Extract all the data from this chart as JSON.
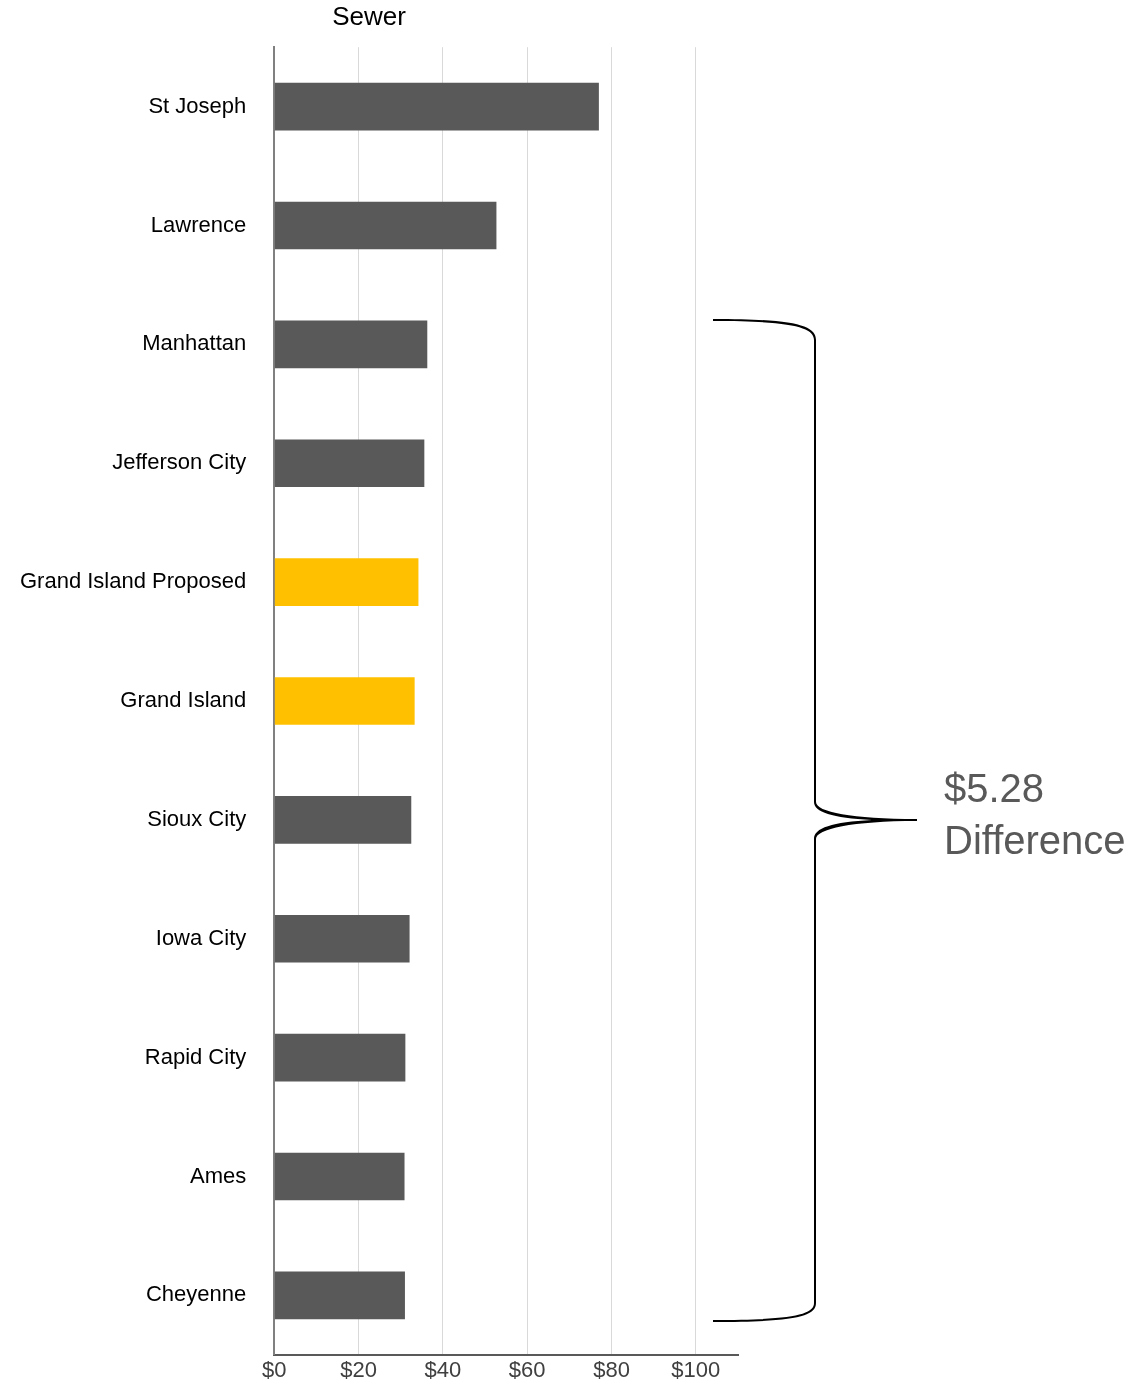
{
  "chart_data": {
    "type": "bar",
    "orientation": "horizontal",
    "title": "Sewer",
    "categories": [
      "St Joseph",
      "Lawrence",
      "Manhattan",
      "Jefferson City",
      "Grand Island Proposed",
      "Grand Island",
      "Sioux City",
      "Iowa City",
      "Rapid City",
      "Ames",
      "Cheyenne"
    ],
    "values": [
      77.0,
      52.7,
      36.3,
      35.6,
      34.2,
      33.3,
      32.5,
      32.1,
      31.1,
      30.9,
      31.0
    ],
    "colors": [
      "#595959",
      "#595959",
      "#595959",
      "#595959",
      "#ffc000",
      "#ffc000",
      "#595959",
      "#595959",
      "#595959",
      "#595959",
      "#595959"
    ],
    "xlim": [
      0,
      110
    ],
    "xticks": [
      {
        "value": 0,
        "label": "$0"
      },
      {
        "value": 20,
        "label": "$20"
      },
      {
        "value": 40,
        "label": "$40"
      },
      {
        "value": 60,
        "label": "$60"
      },
      {
        "value": 80,
        "label": "$80"
      },
      {
        "value": 100,
        "label": "$100"
      }
    ],
    "grid": "x",
    "legend": false,
    "annotations": [
      "$5.28 Difference"
    ]
  }
}
